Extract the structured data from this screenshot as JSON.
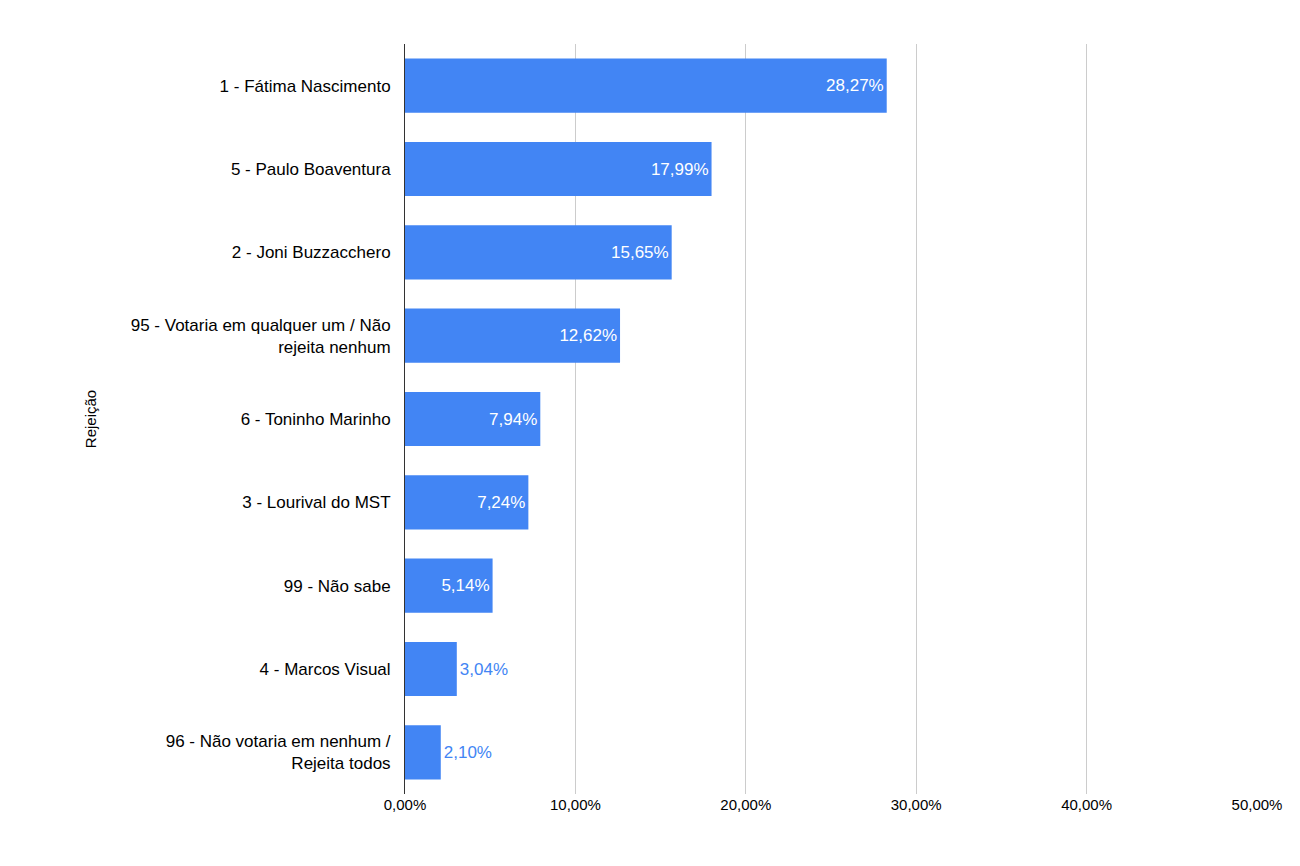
{
  "chart_data": {
    "type": "bar",
    "orientation": "horizontal",
    "ylabel": "Rejeição",
    "categories": [
      "1 - Fátima Nascimento",
      "5 - Paulo Boaventura",
      "2 - Joni Buzzacchero",
      "95 - Votaria em qualquer um / Não rejeita nenhum",
      "6 - Toninho Marinho",
      "3 - Lourival do MST",
      "99 - Não sabe",
      "4 - Marcos Visual",
      "96 - Não votaria em nenhum / Rejeita todos"
    ],
    "values": [
      28.27,
      17.99,
      15.65,
      12.62,
      7.94,
      7.24,
      5.14,
      3.04,
      2.1
    ],
    "value_labels": [
      "28,27%",
      "17,99%",
      "15,65%",
      "12,62%",
      "7,94%",
      "7,24%",
      "5,14%",
      "3,04%",
      "2,10%"
    ],
    "data_labels": true,
    "color": "#4285f4",
    "xlim": [
      0,
      50
    ],
    "xticks": [
      {
        "value": 0,
        "label": "0,00%"
      },
      {
        "value": 10,
        "label": "10,00%"
      },
      {
        "value": 20,
        "label": "20,00%"
      },
      {
        "value": 30,
        "label": "30,00%"
      },
      {
        "value": 40,
        "label": "40,00%"
      },
      {
        "value": 50,
        "label": "50,00%"
      }
    ],
    "grid": true
  }
}
